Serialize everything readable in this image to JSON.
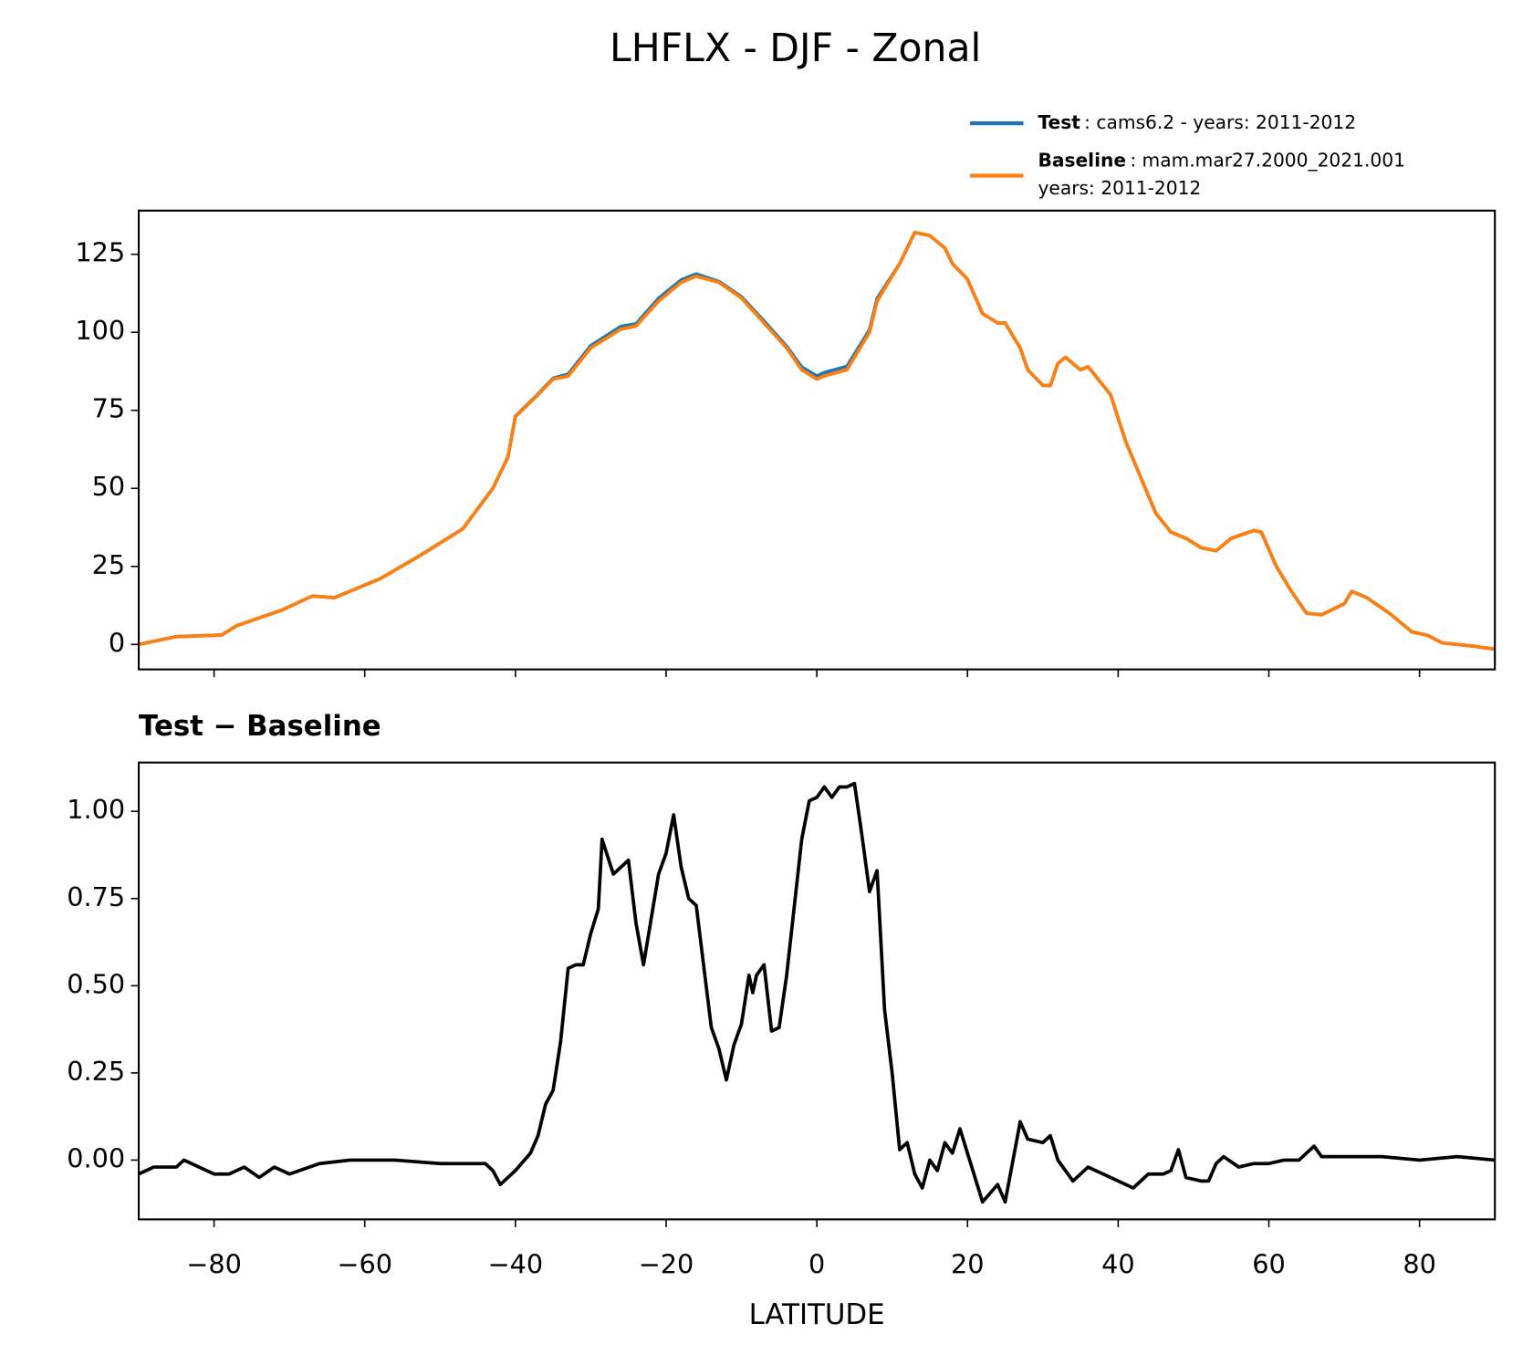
{
  "title": "LHFLX - DJF - Zonal",
  "chart_data": [
    {
      "type": "line",
      "x": [
        -90,
        -85,
        -79,
        -77,
        -71,
        -67,
        -64,
        -58,
        -53,
        -49,
        -47,
        -43,
        -41,
        -40,
        -37,
        -35,
        -33,
        -30,
        -26,
        -24,
        -21,
        -18,
        -16,
        -13,
        -10,
        -7,
        -4,
        -2,
        0,
        1,
        4,
        7,
        8,
        11,
        13,
        15,
        17,
        18,
        20,
        22,
        24,
        25,
        27,
        28,
        30,
        31,
        32,
        33,
        35,
        36,
        39,
        41,
        45,
        47,
        49,
        51,
        53,
        55,
        58,
        59,
        61,
        63,
        65,
        67,
        70,
        71,
        73,
        76,
        79,
        81,
        83,
        87,
        90
      ],
      "series": [
        {
          "name": "Test",
          "description": ": cams6.2 - years: 2011-2012",
          "color": "#1f77b4",
          "values": [
            0,
            2.5,
            3,
            6,
            11,
            15.5,
            15,
            21,
            28,
            34,
            37,
            50,
            60,
            73.1,
            80.2,
            85.3,
            86.6,
            95.7,
            101.9,
            102.7,
            110.9,
            116.8,
            118.7,
            116.3,
            111.4,
            103.6,
            95.5,
            88.9,
            86,
            87.1,
            89.1,
            100.8,
            110.8,
            122,
            132,
            131,
            127,
            122,
            117,
            106,
            103,
            103,
            95,
            88,
            83,
            83,
            90,
            92,
            88,
            89,
            80,
            65,
            42,
            36,
            34,
            31,
            30,
            34,
            36.5,
            36,
            25,
            17,
            10,
            9.5,
            13,
            17,
            15,
            10,
            4,
            3,
            0.5,
            -0.5,
            -1.5
          ]
        },
        {
          "name": "Baseline",
          "description": [
            ": mam.mar27.2000_2021.001",
            "years: 2011-2012"
          ],
          "color": "#ff7f0e",
          "values": [
            0,
            2.5,
            3,
            6,
            11,
            15.5,
            15,
            21,
            28,
            34,
            37,
            50,
            60,
            73,
            80,
            85,
            86,
            95,
            101,
            102,
            110,
            116,
            118,
            116,
            111,
            103,
            95,
            88,
            85,
            86,
            88,
            100,
            110,
            122,
            132,
            131,
            127,
            122,
            117,
            106,
            103,
            103,
            95,
            88,
            83,
            83,
            90,
            92,
            88,
            89,
            80,
            65,
            42,
            36,
            34,
            31,
            30,
            34,
            36.5,
            36,
            25,
            17,
            10,
            9.5,
            13,
            17,
            15,
            10,
            4,
            3,
            0.5,
            -0.5,
            -1.5
          ]
        }
      ],
      "xlim": [
        -90,
        90
      ],
      "ylim": [
        -8,
        139
      ],
      "xticks": [
        {
          "value": -80,
          "label": "−80"
        },
        {
          "value": -60,
          "label": "−60"
        },
        {
          "value": -40,
          "label": "−40"
        },
        {
          "value": -20,
          "label": "−20"
        },
        0,
        20,
        40,
        60,
        80
      ],
      "yticks": [
        0,
        25,
        50,
        75,
        100,
        125
      ],
      "legend": "upper right"
    },
    {
      "type": "line",
      "title": "Test − Baseline",
      "xlabel": "LATITUDE",
      "x": [
        -90,
        -88,
        -85,
        -84,
        -82,
        -80,
        -78,
        -76,
        -74,
        -72,
        -70,
        -66,
        -62,
        -56,
        -50,
        -44,
        -43,
        -42,
        -40,
        -38,
        -37,
        -36,
        -35,
        -34,
        -33,
        -32,
        -31,
        -30,
        -29,
        -28.5,
        -27,
        -25,
        -24,
        -23,
        -21,
        -20,
        -19,
        -18,
        -17,
        -16,
        -14,
        -13,
        -12,
        -11,
        -10,
        -9,
        -8.5,
        -8,
        -7,
        -6,
        -5,
        -4,
        -2,
        -1,
        0,
        1,
        2,
        3,
        4,
        5,
        6,
        7,
        8,
        9,
        10,
        11,
        12,
        13,
        14,
        15,
        16,
        17,
        18,
        19,
        20,
        22,
        24,
        25,
        27,
        28,
        30,
        31,
        32,
        34,
        36,
        38,
        40,
        42,
        44,
        46,
        47,
        48,
        49,
        51,
        52,
        53,
        54,
        56,
        58,
        60,
        62,
        64,
        66,
        67,
        70,
        75,
        80,
        85,
        90
      ],
      "series": [
        {
          "name": "Test − Baseline",
          "color": "#000000",
          "values": [
            -0.04,
            -0.02,
            -0.02,
            0.0,
            -0.02,
            -0.04,
            -0.04,
            -0.02,
            -0.05,
            -0.02,
            -0.04,
            -0.01,
            0.0,
            0.0,
            -0.01,
            -0.01,
            -0.03,
            -0.07,
            -0.03,
            0.02,
            0.07,
            0.16,
            0.2,
            0.34,
            0.55,
            0.56,
            0.56,
            0.65,
            0.72,
            0.92,
            0.82,
            0.86,
            0.68,
            0.56,
            0.82,
            0.88,
            0.99,
            0.84,
            0.75,
            0.73,
            0.38,
            0.32,
            0.23,
            0.33,
            0.39,
            0.53,
            0.48,
            0.53,
            0.56,
            0.37,
            0.38,
            0.53,
            0.92,
            1.03,
            1.04,
            1.07,
            1.04,
            1.07,
            1.07,
            1.08,
            0.93,
            0.77,
            0.83,
            0.43,
            0.25,
            0.03,
            0.05,
            -0.04,
            -0.08,
            0.0,
            -0.03,
            0.05,
            0.02,
            0.09,
            0.02,
            -0.12,
            -0.07,
            -0.12,
            0.11,
            0.06,
            0.05,
            0.07,
            0.0,
            -0.06,
            -0.02,
            -0.04,
            -0.06,
            -0.08,
            -0.04,
            -0.04,
            -0.03,
            0.03,
            -0.05,
            -0.06,
            -0.06,
            -0.01,
            0.01,
            -0.02,
            -0.01,
            -0.01,
            0.0,
            0.0,
            0.04,
            0.01,
            0.01,
            0.01,
            0.0,
            0.01,
            0.0
          ]
        }
      ],
      "xlim": [
        -90,
        90
      ],
      "ylim": [
        -0.17,
        1.14
      ],
      "xticks": [
        {
          "value": -80,
          "label": "−80"
        },
        {
          "value": -60,
          "label": "−60"
        },
        {
          "value": -40,
          "label": "−40"
        },
        {
          "value": -20,
          "label": "−20"
        },
        0,
        20,
        40,
        60,
        80
      ],
      "yticks": [
        {
          "value": 0,
          "label": "0.00"
        },
        {
          "value": 0.25,
          "label": "0.25"
        },
        {
          "value": 0.5,
          "label": "0.50"
        },
        {
          "value": 0.75,
          "label": "0.75"
        },
        {
          "value": 1,
          "label": "1.00"
        }
      ]
    }
  ]
}
